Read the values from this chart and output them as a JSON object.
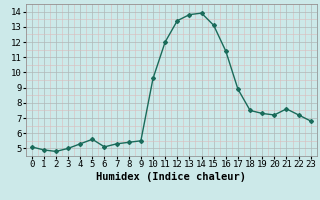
{
  "x": [
    0,
    1,
    2,
    3,
    4,
    5,
    6,
    7,
    8,
    9,
    10,
    11,
    12,
    13,
    14,
    15,
    16,
    17,
    18,
    19,
    20,
    21,
    22,
    23
  ],
  "y": [
    5.1,
    4.9,
    4.8,
    5.0,
    5.3,
    5.6,
    5.1,
    5.3,
    5.4,
    5.5,
    9.6,
    12.0,
    13.4,
    13.8,
    13.9,
    13.1,
    11.4,
    8.9,
    7.5,
    7.3,
    7.2,
    7.6,
    7.2,
    6.8
  ],
  "line_color": "#1a6b5a",
  "marker": "D",
  "marker_size": 2.0,
  "bg_color": "#cce9e9",
  "grid_color_major": "#b0b8b8",
  "grid_color_minor": "#dbbcbc",
  "xlabel": "Humidex (Indice chaleur)",
  "ylim": [
    4.5,
    14.5
  ],
  "xlim": [
    -0.5,
    23.5
  ],
  "yticks": [
    5,
    6,
    7,
    8,
    9,
    10,
    11,
    12,
    13,
    14
  ],
  "xticks": [
    0,
    1,
    2,
    3,
    4,
    5,
    6,
    7,
    8,
    9,
    10,
    11,
    12,
    13,
    14,
    15,
    16,
    17,
    18,
    19,
    20,
    21,
    22,
    23
  ],
  "xlabel_fontsize": 7.5,
  "tick_fontsize": 6.5
}
